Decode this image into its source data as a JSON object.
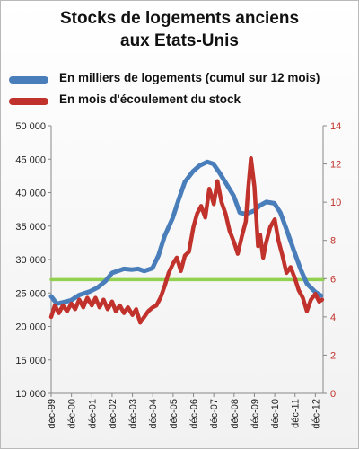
{
  "chart_data": {
    "type": "line",
    "title_lines": [
      "Stocks de logements anciens",
      "aux Etats-Unis"
    ],
    "x_tick_labels": [
      "déc-99",
      "déc-00",
      "déc-01",
      "déc-02",
      "déc-03",
      "déc-04",
      "déc-05",
      "déc-06",
      "déc-07",
      "déc-08",
      "déc-09",
      "déc-10",
      "déc-11",
      "déc-12"
    ],
    "y_left": {
      "range": [
        10000,
        50000
      ],
      "tick_values": [
        10000,
        15000,
        20000,
        25000,
        30000,
        35000,
        40000,
        45000,
        50000
      ],
      "tick_labels": [
        "10 000",
        "15 000",
        "20 000",
        "25 000",
        "30 000",
        "35 000",
        "40 000",
        "45 000",
        "50 000"
      ]
    },
    "y_right": {
      "range": [
        0,
        14
      ],
      "tick_values": [
        0,
        2,
        4,
        6,
        8,
        10,
        12,
        14
      ],
      "tick_labels": [
        "0",
        "2",
        "4",
        "6",
        "8",
        "10",
        "12",
        "14"
      ]
    },
    "grid": false,
    "legend_position": "top",
    "series": [
      {
        "name": "En milliers de logements (cumul sur 12 mois)",
        "axis": "left",
        "color": "#4a7ebb",
        "points": [
          [
            1999.92,
            24500
          ],
          [
            2000.2,
            23400
          ],
          [
            2000.5,
            23600
          ],
          [
            2000.9,
            23900
          ],
          [
            2001.3,
            24700
          ],
          [
            2001.8,
            25200
          ],
          [
            2002.2,
            25800
          ],
          [
            2002.6,
            26800
          ],
          [
            2002.92,
            28000
          ],
          [
            2003.2,
            28300
          ],
          [
            2003.5,
            28600
          ],
          [
            2003.9,
            28500
          ],
          [
            2004.2,
            28600
          ],
          [
            2004.5,
            28300
          ],
          [
            2004.9,
            28700
          ],
          [
            2005.2,
            30600
          ],
          [
            2005.5,
            33500
          ],
          [
            2005.9,
            36200
          ],
          [
            2006.2,
            39000
          ],
          [
            2006.5,
            41600
          ],
          [
            2006.9,
            43200
          ],
          [
            2007.2,
            44000
          ],
          [
            2007.6,
            44600
          ],
          [
            2007.9,
            44300
          ],
          [
            2008.2,
            43000
          ],
          [
            2008.5,
            41500
          ],
          [
            2008.9,
            39500
          ],
          [
            2009.2,
            37000
          ],
          [
            2009.5,
            36800
          ],
          [
            2009.92,
            37300
          ],
          [
            2010.2,
            38100
          ],
          [
            2010.5,
            38600
          ],
          [
            2010.9,
            38400
          ],
          [
            2011.2,
            37000
          ],
          [
            2011.5,
            34500
          ],
          [
            2011.9,
            31000
          ],
          [
            2012.2,
            28500
          ],
          [
            2012.5,
            26400
          ],
          [
            2012.9,
            25200
          ],
          [
            2013.2,
            24600
          ]
        ]
      },
      {
        "name": "En mois d'écoulement du stock",
        "axis": "right",
        "color": "#c0322b",
        "points": [
          [
            1999.92,
            4.0
          ],
          [
            2000.1,
            4.6
          ],
          [
            2000.3,
            4.2
          ],
          [
            2000.5,
            4.6
          ],
          [
            2000.7,
            4.3
          ],
          [
            2000.92,
            4.7
          ],
          [
            2001.1,
            4.4
          ],
          [
            2001.3,
            4.9
          ],
          [
            2001.5,
            4.5
          ],
          [
            2001.7,
            5.0
          ],
          [
            2001.92,
            4.6
          ],
          [
            2002.1,
            5.0
          ],
          [
            2002.3,
            4.5
          ],
          [
            2002.5,
            4.9
          ],
          [
            2002.7,
            4.4
          ],
          [
            2002.92,
            4.8
          ],
          [
            2003.1,
            4.3
          ],
          [
            2003.3,
            4.6
          ],
          [
            2003.5,
            4.2
          ],
          [
            2003.7,
            4.5
          ],
          [
            2003.92,
            4.1
          ],
          [
            2004.1,
            4.4
          ],
          [
            2004.3,
            3.7
          ],
          [
            2004.5,
            4.0
          ],
          [
            2004.7,
            4.3
          ],
          [
            2004.92,
            4.5
          ],
          [
            2005.1,
            4.6
          ],
          [
            2005.3,
            5.0
          ],
          [
            2005.5,
            5.6
          ],
          [
            2005.7,
            6.3
          ],
          [
            2005.92,
            6.8
          ],
          [
            2006.1,
            7.1
          ],
          [
            2006.3,
            6.4
          ],
          [
            2006.5,
            7.2
          ],
          [
            2006.7,
            7.4
          ],
          [
            2006.92,
            8.7
          ],
          [
            2007.1,
            9.4
          ],
          [
            2007.3,
            9.8
          ],
          [
            2007.5,
            9.2
          ],
          [
            2007.7,
            10.7
          ],
          [
            2007.92,
            9.9
          ],
          [
            2008.1,
            11.1
          ],
          [
            2008.3,
            10.0
          ],
          [
            2008.5,
            9.4
          ],
          [
            2008.7,
            8.5
          ],
          [
            2008.92,
            7.9
          ],
          [
            2009.1,
            7.3
          ],
          [
            2009.3,
            8.2
          ],
          [
            2009.5,
            9.0
          ],
          [
            2009.6,
            10.5
          ],
          [
            2009.75,
            12.3
          ],
          [
            2009.92,
            10.8
          ],
          [
            2010.1,
            7.7
          ],
          [
            2010.2,
            8.3
          ],
          [
            2010.35,
            7.1
          ],
          [
            2010.5,
            7.9
          ],
          [
            2010.7,
            8.7
          ],
          [
            2010.92,
            9.1
          ],
          [
            2011.1,
            8.0
          ],
          [
            2011.3,
            7.2
          ],
          [
            2011.5,
            6.3
          ],
          [
            2011.7,
            6.6
          ],
          [
            2011.92,
            6.0
          ],
          [
            2012.1,
            5.4
          ],
          [
            2012.3,
            5.0
          ],
          [
            2012.5,
            4.3
          ],
          [
            2012.7,
            4.9
          ],
          [
            2012.92,
            5.2
          ],
          [
            2013.1,
            4.8
          ],
          [
            2013.25,
            4.9
          ]
        ]
      },
      {
        "name": "",
        "axis": "left",
        "color": "#92d050",
        "points": [
          [
            1999.92,
            27000
          ],
          [
            2013.3,
            27000
          ]
        ]
      }
    ]
  }
}
